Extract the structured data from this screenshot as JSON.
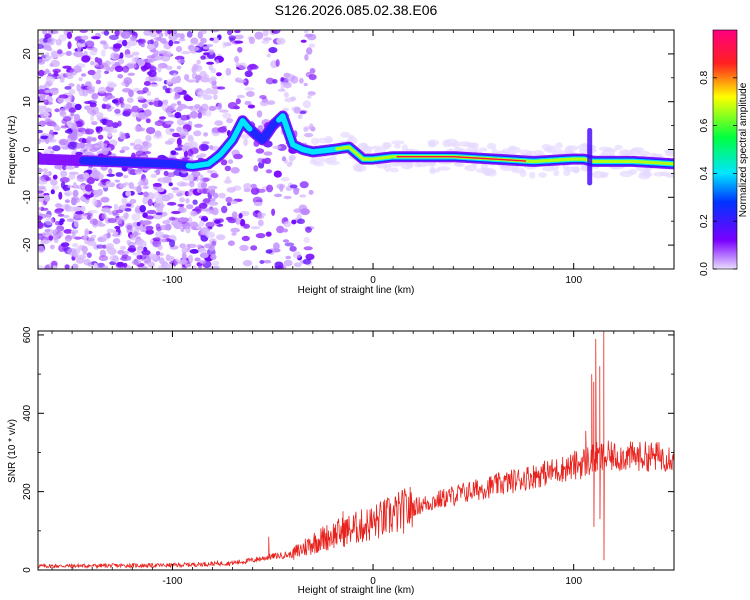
{
  "title": "S126.2026.085.02.38.E06",
  "colors": {
    "frame": "#000000",
    "snr_line": "#e8231e",
    "ridge_hot": "#ff0040",
    "ridge_core": "#f5c000"
  },
  "chart_data": [
    {
      "type": "heatmap",
      "name": "spectrogram",
      "xlabel": "Height of straight line (km)",
      "ylabel": "Frequency (Hz)",
      "xlim": [
        -167,
        150
      ],
      "ylim": [
        -25,
        25
      ],
      "xticks": [
        -100,
        0,
        100
      ],
      "yticks": [
        -20,
        -10,
        0,
        10,
        20
      ],
      "colorbar": {
        "label": "Normalized spectral amplitude",
        "range": [
          0,
          1
        ],
        "ticks": [
          "0.0",
          "0.2",
          "0.4",
          "0.6",
          "0.8"
        ],
        "tick_values": [
          0,
          0.2,
          0.4,
          0.6,
          0.8
        ],
        "colormap": [
          "#e9ddff",
          "#7a00ff",
          "#0033ff",
          "#00e5ff",
          "#00ff40",
          "#ffff00",
          "#ff2020",
          "#ff0080"
        ]
      },
      "ridge": {
        "x": [
          -167,
          -100,
          -90,
          -82,
          -76,
          -70,
          -65,
          -62,
          -58,
          -55,
          -50,
          -45,
          -40,
          -35,
          -30,
          -20,
          -12,
          -5,
          0,
          10,
          20,
          40,
          60,
          80,
          100,
          105,
          110,
          130,
          150
        ],
        "y": [
          -2,
          -3,
          -3.5,
          -3,
          -1,
          2,
          6,
          4.5,
          3,
          2,
          5,
          7,
          1,
          0,
          -0.5,
          0,
          0.5,
          -2,
          -2,
          -1.5,
          -1.5,
          -1.5,
          -2,
          -2.5,
          -2,
          -2,
          -2.5,
          -2.5,
          -3
        ],
        "amplitude": [
          0.15,
          0.3,
          0.4,
          0.45,
          0.5,
          0.5,
          0.45,
          0.4,
          0.3,
          0.3,
          0.35,
          0.4,
          0.45,
          0.5,
          0.55,
          0.6,
          0.7,
          0.75,
          0.8,
          0.85,
          0.9,
          0.95,
          0.9,
          0.85,
          0.85,
          0.8,
          0.85,
          0.85,
          0.8
        ]
      },
      "noise_region_x": [
        -167,
        -30
      ]
    },
    {
      "type": "line",
      "name": "snr",
      "xlabel": "Height of straight line (km)",
      "ylabel": "SNR (10 * v/v)",
      "xlim": [
        -167,
        150
      ],
      "ylim": [
        0,
        610
      ],
      "xticks": [
        -100,
        0,
        100
      ],
      "yticks": [
        0,
        200,
        400,
        600
      ],
      "trend": {
        "x": [
          -167,
          -100,
          -70,
          -60,
          -50,
          -40,
          -30,
          -20,
          -10,
          0,
          20,
          40,
          60,
          80,
          100,
          108,
          112,
          115,
          120,
          150
        ],
        "y": [
          10,
          12,
          18,
          25,
          35,
          40,
          70,
          90,
          105,
          120,
          160,
          190,
          215,
          240,
          265,
          280,
          285,
          285,
          290,
          290
        ]
      },
      "spikes": [
        {
          "x": -52,
          "y": 85
        },
        {
          "x": -15,
          "y": 150
        },
        {
          "x": 104,
          "y": 240
        },
        {
          "x": 106,
          "y": 355
        },
        {
          "x": 109,
          "y": 500
        },
        {
          "x": 110,
          "y": 480
        },
        {
          "x": 111,
          "y": 590
        },
        {
          "x": 113,
          "y": 520
        },
        {
          "x": 115,
          "y": 610
        }
      ],
      "dips": [
        {
          "x": 110,
          "y": 110
        },
        {
          "x": 113,
          "y": 130
        },
        {
          "x": 115,
          "y": 25
        }
      ]
    }
  ]
}
